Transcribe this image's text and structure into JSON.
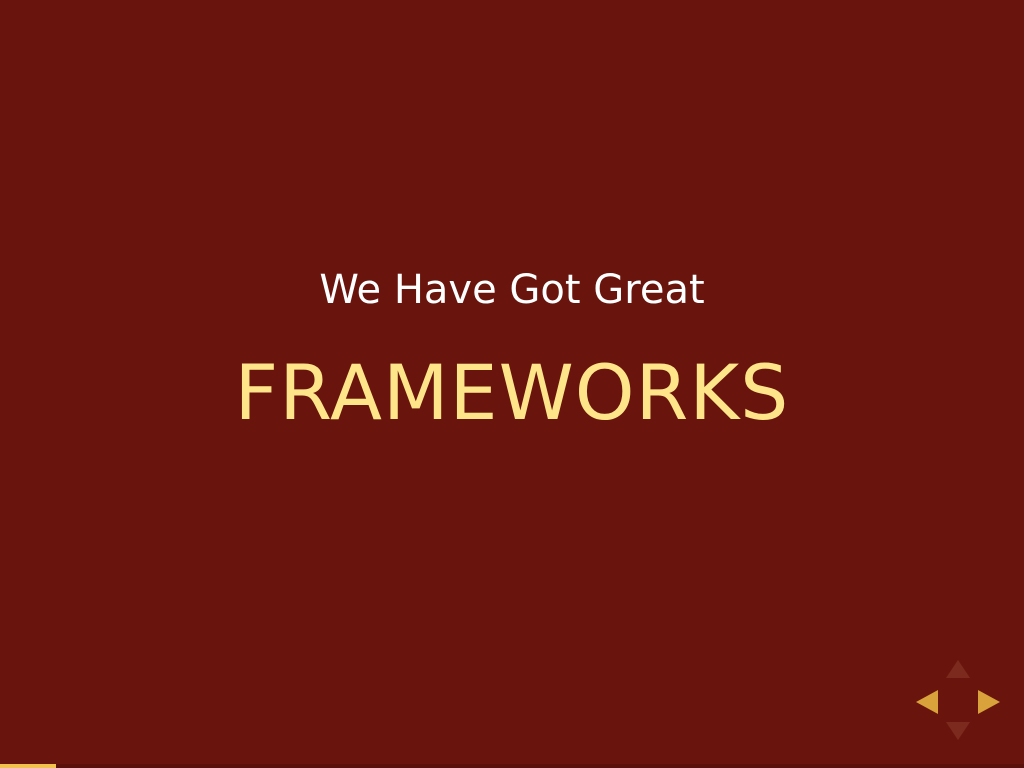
{
  "slide": {
    "subtitle": "We Have Got Great",
    "title": "FRAMEWORKS"
  },
  "navigation": {
    "up_icon": "triangle-up",
    "down_icon": "triangle-down",
    "left_icon": "triangle-left",
    "right_icon": "triangle-right",
    "enabled_color": "#d9a23a",
    "disabled_color": "#7d2a1e"
  },
  "progress": {
    "fraction": 0.055,
    "color": "#f2c24a"
  },
  "colors": {
    "background": "#6a140e",
    "title": "#ffe58a",
    "subtitle": "#ffffff"
  }
}
